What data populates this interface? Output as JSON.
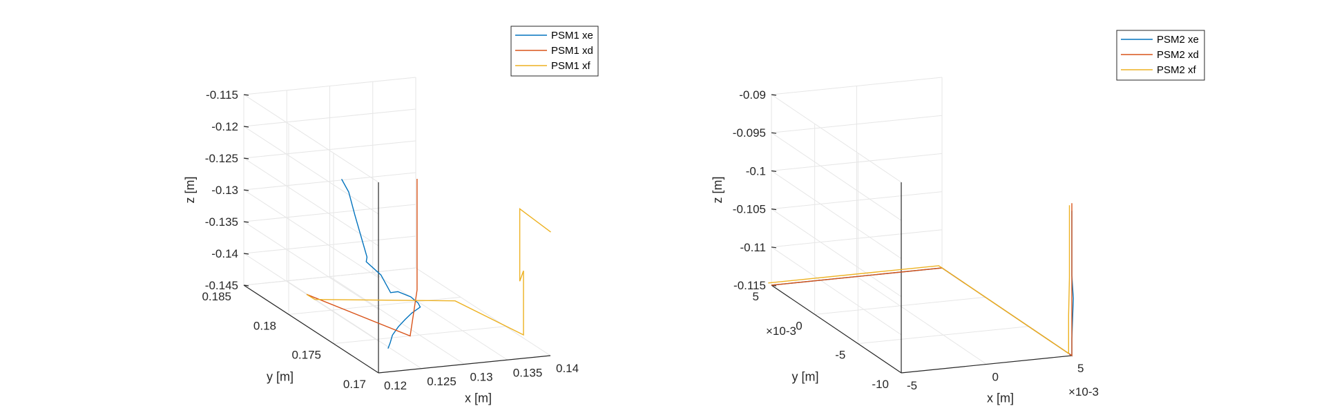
{
  "chart_data": [
    {
      "type": "line",
      "projection": "3d",
      "title": "",
      "xlabel": "x [m]",
      "ylabel": "y [m]",
      "zlabel": "z [m]",
      "xlim": [
        0.12,
        0.14
      ],
      "ylim": [
        0.17,
        0.185
      ],
      "zlim": [
        -0.145,
        -0.115
      ],
      "xticks": [
        "0.12",
        "0.125",
        "0.13",
        "0.135",
        "0.14"
      ],
      "yticks": [
        "0.17",
        "0.175",
        "0.18",
        "0.185"
      ],
      "zticks": [
        "-0.145",
        "-0.14",
        "-0.135",
        "-0.13",
        "-0.125",
        "-0.12",
        "-0.115"
      ],
      "grid": true,
      "legend": "top-right",
      "series": [
        {
          "name": "PSM1 xe",
          "color": "#0072BD",
          "points": [
            [
              0.1209,
              0.1698,
              -0.1411
            ],
            [
              0.1222,
              0.1708,
              -0.1413
            ],
            [
              0.1235,
              0.1718,
              -0.1412
            ],
            [
              0.1246,
              0.1722,
              -0.1404
            ],
            [
              0.1258,
              0.1726,
              -0.1398
            ],
            [
              0.127,
              0.173,
              -0.1393
            ],
            [
              0.1281,
              0.1731,
              -0.1386
            ],
            [
              0.1291,
              0.1743,
              -0.1392
            ],
            [
              0.1297,
              0.1757,
              -0.1396
            ],
            [
              0.1303,
              0.1777,
              -0.1407
            ],
            [
              0.1305,
              0.1787,
              -0.1418
            ],
            [
              0.13,
              0.1793,
              -0.1395
            ],
            [
              0.1285,
              0.1795,
              -0.1374
            ],
            [
              0.129,
              0.1799,
              -0.1371
            ],
            [
              0.1278,
              0.1801,
              -0.1305
            ],
            [
              0.1275,
              0.1805,
              -0.1272
            ],
            [
              0.1272,
              0.181,
              -0.1256
            ]
          ]
        },
        {
          "name": "PSM1 xd",
          "color": "#D95319",
          "points": [
            [
              0.12,
              0.178,
              -0.14
            ],
            [
              0.124,
              0.1703,
              -0.14
            ],
            [
              0.1318,
              0.177,
              -0.14
            ],
            [
              0.1318,
              0.177,
              -0.1225
            ]
          ]
        },
        {
          "name": "PSM1 xf",
          "color": "#EDB120",
          "points": [
            [
              0.12,
              0.178,
              -0.14
            ],
            [
              0.122,
              0.179,
              -0.142
            ],
            [
              0.131,
              0.172,
              -0.137
            ],
            [
              0.14,
              0.173,
              -0.1445
            ],
            [
              0.14,
              0.173,
              -0.1344
            ],
            [
              0.138,
              0.1715,
              -0.1344
            ],
            [
              0.138,
              0.1715,
              -0.123
            ],
            [
              0.139,
              0.169,
              -0.1245
            ]
          ]
        }
      ]
    },
    {
      "type": "line",
      "projection": "3d",
      "title": "",
      "xlabel": "x [m]",
      "ylabel": "y [m]",
      "zlabel": "z [m]",
      "xlim": [
        -0.006,
        0.006
      ],
      "ylim": [
        -0.01,
        0.006
      ],
      "zlim": [
        -0.115,
        -0.09
      ],
      "xticks": [
        "-5",
        "0",
        "5"
      ],
      "yticks": [
        "-10",
        "-5",
        "0",
        "5"
      ],
      "zticks": [
        "-0.115",
        "-0.11",
        "-0.105",
        "-0.1",
        "-0.095",
        "-0.09"
      ],
      "x_multiplier": "×10^-3",
      "y_multiplier": "×10^-3",
      "grid": true,
      "legend": "top-right",
      "series": [
        {
          "name": "PSM2 xe",
          "color": "#0072BD",
          "points": [
            [
              -0.006,
              0.006,
              -0.115
            ],
            [
              0.006,
              0.006,
              -0.115
            ],
            [
              0.006,
              -0.01,
              -0.115
            ],
            [
              0.006,
              -0.01,
              -0.1128
            ],
            [
              0.0061,
              -0.01,
              -0.1075
            ],
            [
              0.006,
              -0.01,
              -0.1045
            ],
            [
              0.006,
              -0.01,
              -0.096
            ]
          ]
        },
        {
          "name": "PSM2 xd",
          "color": "#D95319",
          "points": [
            [
              -0.006,
              0.006,
              -0.115
            ],
            [
              0.006,
              0.006,
              -0.115
            ],
            [
              0.006,
              -0.01,
              -0.115
            ],
            [
              0.006,
              -0.01,
              -0.095
            ]
          ]
        },
        {
          "name": "PSM2 xf",
          "color": "#EDB120",
          "points": [
            [
              -0.006,
              0.0064,
              -0.115
            ],
            [
              0.006,
              0.0064,
              -0.115
            ],
            [
              0.006,
              -0.0096,
              -0.115
            ],
            [
              0.006,
              -0.0096,
              -0.11
            ],
            [
              0.006,
              -0.0097,
              -0.105
            ],
            [
              0.006,
              -0.0097,
              -0.0955
            ]
          ]
        }
      ]
    }
  ]
}
